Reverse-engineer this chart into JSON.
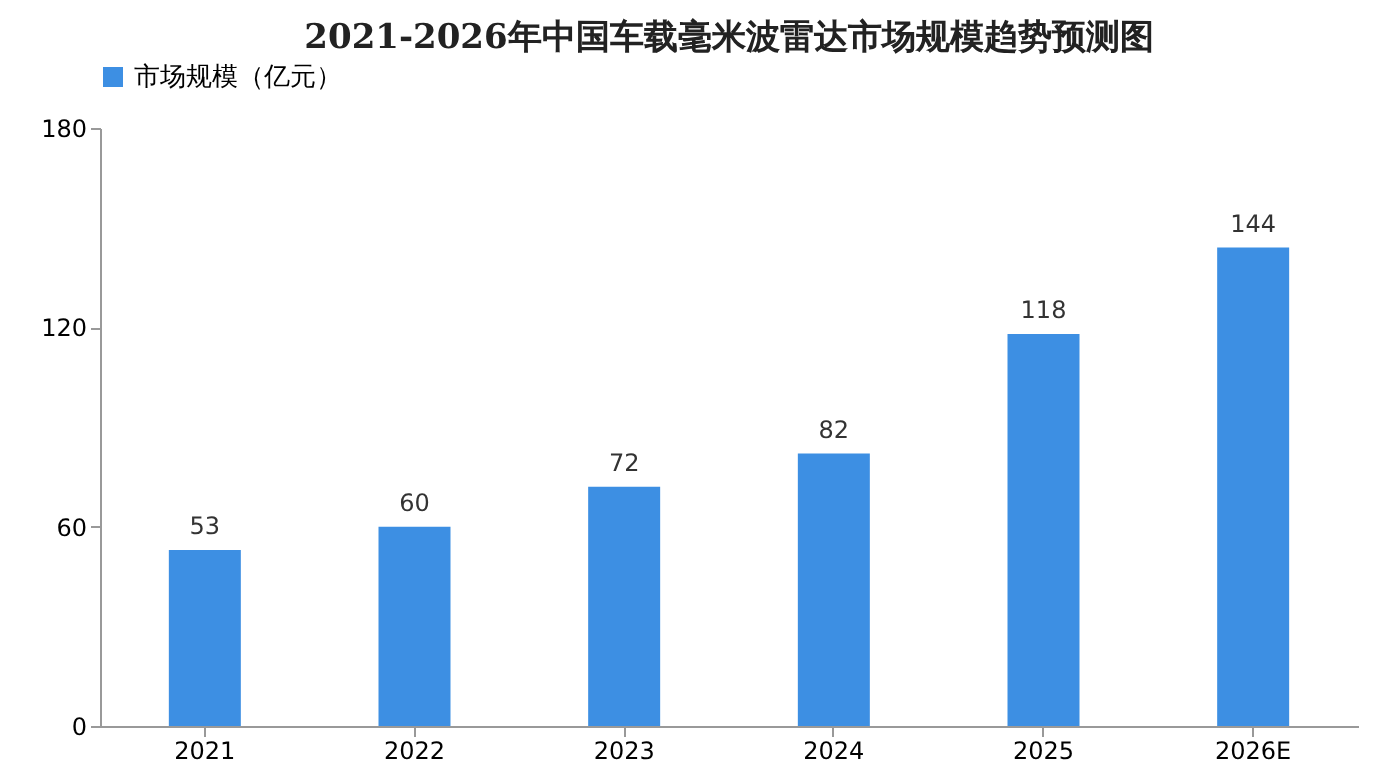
{
  "chart_data": {
    "type": "bar",
    "title": "2021-2026年中国车载毫米波雷达市场规模趋势预测图",
    "categories": [
      "2021",
      "2022",
      "2023",
      "2024",
      "2025",
      "2026E"
    ],
    "series": [
      {
        "name": "市场规模（亿元）",
        "color": "#3d8fe3",
        "values": [
          53,
          60,
          72,
          82,
          118,
          144
        ]
      }
    ],
    "ylim": [
      0,
      180
    ],
    "yticks": [
      0,
      60,
      120,
      180
    ],
    "grid": false,
    "legend": "top",
    "data_labels": true
  }
}
